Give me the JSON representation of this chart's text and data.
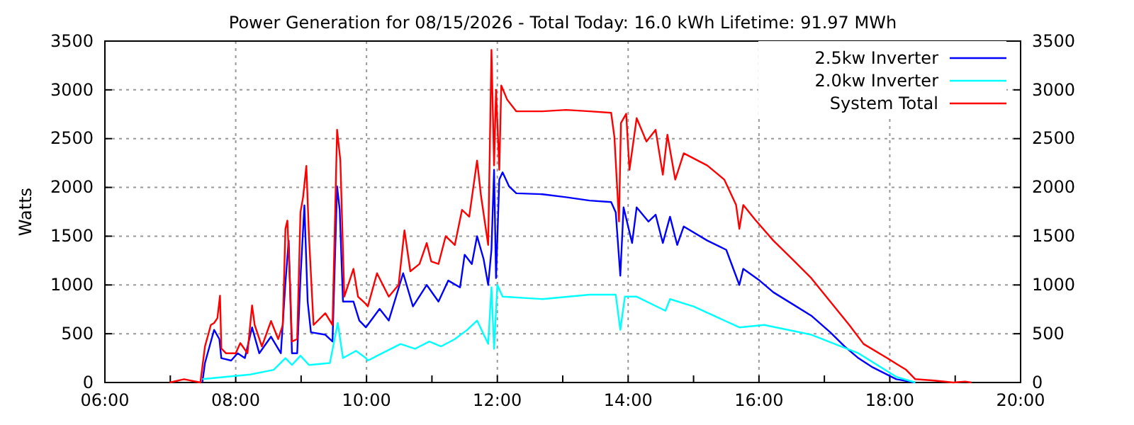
{
  "chart_data": {
    "type": "line",
    "title": "Power Generation for 08/15/2026 - Total Today: 16.0 kWh   Lifetime: 91.97 MWh",
    "ylabel": "Watts",
    "xlim": [
      6,
      20
    ],
    "xticks": [
      {
        "value": 6,
        "label": "06:00"
      },
      {
        "value": 7,
        "label": null
      },
      {
        "value": 8,
        "label": "08:00"
      },
      {
        "value": 9,
        "label": null
      },
      {
        "value": 10,
        "label": "10:00"
      },
      {
        "value": 11,
        "label": null
      },
      {
        "value": 12,
        "label": "12:00"
      },
      {
        "value": 13,
        "label": null
      },
      {
        "value": 14,
        "label": "14:00"
      },
      {
        "value": 15,
        "label": null
      },
      {
        "value": 16,
        "label": "16:00"
      },
      {
        "value": 17,
        "label": null
      },
      {
        "value": 18,
        "label": "18:00"
      },
      {
        "value": 19,
        "label": null
      },
      {
        "value": 20,
        "label": "20:00"
      }
    ],
    "ylim": [
      0,
      3500
    ],
    "yticks": [
      0,
      500,
      1000,
      1500,
      2000,
      2500,
      3000,
      3500
    ],
    "y2lim": [
      0,
      3500
    ],
    "y2ticks": [
      0,
      500,
      1000,
      1500,
      2000,
      2500,
      3000,
      3500
    ],
    "grid": true,
    "legend": "top right",
    "line_style": "solid",
    "marker": "none",
    "series": [
      {
        "name": "2.5kw Inverter",
        "color": "#0000ff",
        "x": [
          7.49,
          7.53,
          7.6,
          7.67,
          7.75,
          7.78,
          7.93,
          8.03,
          8.14,
          8.25,
          8.36,
          8.54,
          8.69,
          8.76,
          8.81,
          8.86,
          8.94,
          8.99,
          9.05,
          9.1,
          9.15,
          9.37,
          9.48,
          9.55,
          9.59,
          9.64,
          9.8,
          9.89,
          9.99,
          10.2,
          10.34,
          10.56,
          10.71,
          10.92,
          11.1,
          11.25,
          11.43,
          11.5,
          11.61,
          11.69,
          11.79,
          11.86,
          11.91,
          11.95,
          11.98,
          12.03,
          12.08,
          12.18,
          12.29,
          12.69,
          13.05,
          13.41,
          13.74,
          13.81,
          13.88,
          13.93,
          14.06,
          14.13,
          14.31,
          14.42,
          14.53,
          14.64,
          14.75,
          14.85,
          15.21,
          15.5,
          15.7,
          15.76,
          16.01,
          16.22,
          16.51,
          16.8,
          17.09,
          17.31,
          17.52,
          17.74,
          18.1,
          18.39
        ],
        "values": [
          0,
          200,
          370,
          540,
          445,
          250,
          225,
          300,
          250,
          565,
          300,
          470,
          300,
          1020,
          1455,
          300,
          300,
          1070,
          1815,
          830,
          515,
          490,
          420,
          2010,
          1770,
          830,
          830,
          635,
          565,
          755,
          635,
          1120,
          780,
          1000,
          830,
          1045,
          975,
          1310,
          1215,
          1500,
          1265,
          1000,
          1360,
          2180,
          1070,
          2080,
          2155,
          2010,
          1940,
          1930,
          1900,
          1865,
          1850,
          1745,
          1095,
          1795,
          1430,
          1795,
          1650,
          1720,
          1430,
          1700,
          1410,
          1600,
          1455,
          1360,
          1000,
          1165,
          1045,
          925,
          805,
          685,
          515,
          370,
          250,
          155,
          34,
          0
        ]
      },
      {
        "name": "2.0kw Inverter",
        "color": "#00ffff",
        "x": [
          7.49,
          7.85,
          8.22,
          8.58,
          8.76,
          8.86,
          8.99,
          9.12,
          9.44,
          9.56,
          9.64,
          9.84,
          9.99,
          10.02,
          10.24,
          10.52,
          10.74,
          10.96,
          11.14,
          11.35,
          11.54,
          11.69,
          11.86,
          11.91,
          11.95,
          12.0,
          12.08,
          12.69,
          13.41,
          13.81,
          13.88,
          13.95,
          14.13,
          14.57,
          14.64,
          15.0,
          15.7,
          16.08,
          16.8,
          17.52,
          18.1,
          18.39
        ],
        "values": [
          34,
          58,
          82,
          130,
          250,
          180,
          275,
          180,
          200,
          610,
          250,
          325,
          250,
          225,
          300,
          395,
          345,
          420,
          370,
          445,
          540,
          635,
          395,
          975,
          345,
          1000,
          880,
          855,
          900,
          900,
          540,
          880,
          880,
          735,
          855,
          780,
          565,
          590,
          490,
          300,
          58,
          0
        ]
      },
      {
        "name": "System Total",
        "color": "#ff0000",
        "x": [
          6.99,
          7.21,
          7.46,
          7.53,
          7.62,
          7.67,
          7.72,
          7.76,
          7.78,
          7.85,
          8.0,
          8.07,
          8.18,
          8.25,
          8.29,
          8.4,
          8.54,
          8.65,
          8.72,
          8.76,
          8.79,
          8.83,
          8.86,
          8.94,
          8.99,
          9.03,
          9.08,
          9.12,
          9.19,
          9.37,
          9.48,
          9.55,
          9.6,
          9.66,
          9.8,
          9.87,
          9.99,
          10.02,
          10.16,
          10.34,
          10.49,
          10.58,
          10.67,
          10.81,
          10.92,
          10.99,
          11.1,
          11.21,
          11.35,
          11.46,
          11.57,
          11.69,
          11.75,
          11.86,
          11.91,
          11.95,
          11.98,
          12.03,
          12.06,
          12.15,
          12.29,
          12.69,
          13.05,
          13.41,
          13.74,
          13.79,
          13.86,
          13.89,
          13.97,
          14.02,
          14.13,
          14.28,
          14.42,
          14.53,
          14.6,
          14.72,
          14.85,
          15.21,
          15.47,
          15.65,
          15.7,
          15.76,
          15.94,
          16.22,
          16.51,
          16.8,
          17.09,
          17.38,
          17.6,
          17.96,
          18.25,
          18.39,
          18.68,
          18.97,
          19.15,
          19.25
        ],
        "values": [
          0,
          34,
          0,
          370,
          590,
          610,
          660,
          890,
          350,
          300,
          300,
          405,
          300,
          790,
          590,
          370,
          630,
          445,
          590,
          1575,
          1660,
          1020,
          420,
          445,
          1745,
          1900,
          2220,
          1500,
          590,
          710,
          590,
          2590,
          2275,
          880,
          1165,
          880,
          805,
          780,
          1120,
          880,
          1000,
          1560,
          1140,
          1215,
          1430,
          1240,
          1215,
          1500,
          1410,
          1770,
          1700,
          2275,
          1915,
          1410,
          3410,
          2225,
          3000,
          2180,
          3045,
          2900,
          2780,
          2780,
          2795,
          2780,
          2765,
          2515,
          1650,
          2660,
          2755,
          2180,
          2710,
          2470,
          2590,
          2130,
          2540,
          2080,
          2350,
          2225,
          2080,
          1820,
          1575,
          1820,
          1670,
          1455,
          1265,
          1070,
          830,
          590,
          395,
          250,
          130,
          34,
          20,
          0,
          10,
          0
        ]
      }
    ]
  }
}
